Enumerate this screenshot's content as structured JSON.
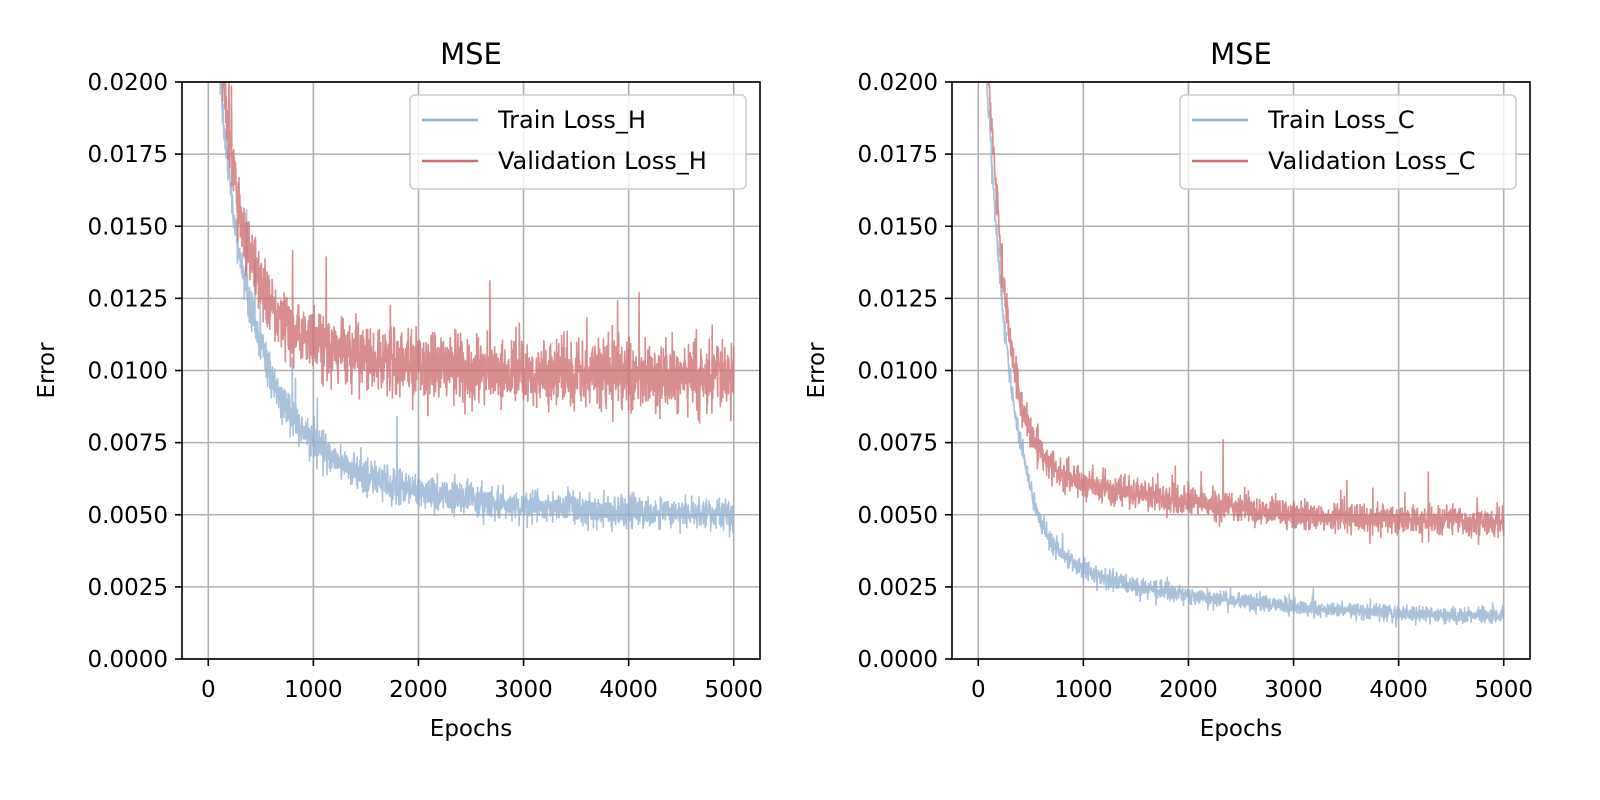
{
  "chart_data": [
    {
      "type": "line",
      "title": "MSE",
      "xlabel": "Epochs",
      "ylabel": "Error",
      "xlim": [
        -250,
        5250
      ],
      "ylim": [
        0.0,
        0.02
      ],
      "xticks": [
        0,
        1000,
        2000,
        3000,
        4000,
        5000
      ],
      "xtick_labels": [
        "0",
        "1000",
        "2000",
        "3000",
        "4000",
        "5000"
      ],
      "yticks": [
        0.0,
        0.0025,
        0.005,
        0.0075,
        0.01,
        0.0125,
        0.015,
        0.0175,
        0.02
      ],
      "ytick_labels": [
        "0.0000",
        "0.0025",
        "0.0050",
        "0.0075",
        "0.0100",
        "0.0125",
        "0.0150",
        "0.0175",
        "0.0200"
      ],
      "grid": true,
      "legend_position": "upper-right",
      "series": [
        {
          "name": "Train Loss_H",
          "color": "#8fb1d2",
          "noise": 0.00034,
          "x": [
            100,
            150,
            200,
            250,
            300,
            400,
            500,
            600,
            700,
            800,
            1000,
            1200,
            1500,
            2000,
            2500,
            3000,
            3500,
            4000,
            4500,
            5000
          ],
          "values": [
            0.0205,
            0.0185,
            0.0168,
            0.0152,
            0.014,
            0.0122,
            0.0109,
            0.0098,
            0.009,
            0.0084,
            0.0075,
            0.0069,
            0.0063,
            0.0058,
            0.0055,
            0.0053,
            0.0052,
            0.0051,
            0.0051,
            0.005
          ]
        },
        {
          "name": "Validation Loss_H",
          "color": "#cd6e6e",
          "noise": 0.00058,
          "x": [
            100,
            150,
            200,
            250,
            300,
            400,
            500,
            600,
            700,
            800,
            1000,
            1200,
            1500,
            2000,
            2500,
            3000,
            3500,
            4000,
            4500,
            5000
          ],
          "values": [
            0.022,
            0.02,
            0.0182,
            0.0166,
            0.0155,
            0.014,
            0.013,
            0.0123,
            0.0118,
            0.0114,
            0.011,
            0.0107,
            0.0105,
            0.0102,
            0.01,
            0.0099,
            0.0099,
            0.0098,
            0.0098,
            0.0098
          ]
        }
      ]
    },
    {
      "type": "line",
      "title": "MSE",
      "xlabel": "Epochs",
      "ylabel": "Error",
      "xlim": [
        -250,
        5250
      ],
      "ylim": [
        0.0,
        0.02
      ],
      "xticks": [
        0,
        1000,
        2000,
        3000,
        4000,
        5000
      ],
      "xtick_labels": [
        "0",
        "1000",
        "2000",
        "3000",
        "4000",
        "5000"
      ],
      "yticks": [
        0.0,
        0.0025,
        0.005,
        0.0075,
        0.01,
        0.0125,
        0.015,
        0.0175,
        0.02
      ],
      "ytick_labels": [
        "0.0000",
        "0.0025",
        "0.0050",
        "0.0075",
        "0.0100",
        "0.0125",
        "0.0150",
        "0.0175",
        "0.0200"
      ],
      "grid": true,
      "legend_position": "upper-right",
      "series": [
        {
          "name": "Train Loss_C",
          "color": "#8fb1d2",
          "noise": 0.00022,
          "x": [
            50,
            100,
            150,
            200,
            250,
            300,
            400,
            500,
            600,
            700,
            800,
            1000,
            1200,
            1500,
            2000,
            2500,
            3000,
            3500,
            4000,
            4500,
            5000
          ],
          "values": [
            0.0215,
            0.019,
            0.016,
            0.0135,
            0.0114,
            0.0097,
            0.0075,
            0.0058,
            0.0047,
            0.004,
            0.0036,
            0.0031,
            0.0028,
            0.0025,
            0.0022,
            0.002,
            0.0018,
            0.0017,
            0.0016,
            0.0015,
            0.0015
          ]
        },
        {
          "name": "Validation Loss_C",
          "color": "#cd6e6e",
          "noise": 0.00032,
          "x": [
            50,
            100,
            150,
            200,
            250,
            300,
            400,
            500,
            600,
            700,
            800,
            1000,
            1200,
            1500,
            2000,
            2500,
            3000,
            3500,
            4000,
            4500,
            5000
          ],
          "values": [
            0.022,
            0.02,
            0.0172,
            0.0148,
            0.0127,
            0.0111,
            0.009,
            0.0078,
            0.0071,
            0.0067,
            0.0064,
            0.0061,
            0.0059,
            0.0057,
            0.0055,
            0.0052,
            0.005,
            0.0049,
            0.0048,
            0.0048,
            0.0047
          ]
        }
      ]
    }
  ]
}
